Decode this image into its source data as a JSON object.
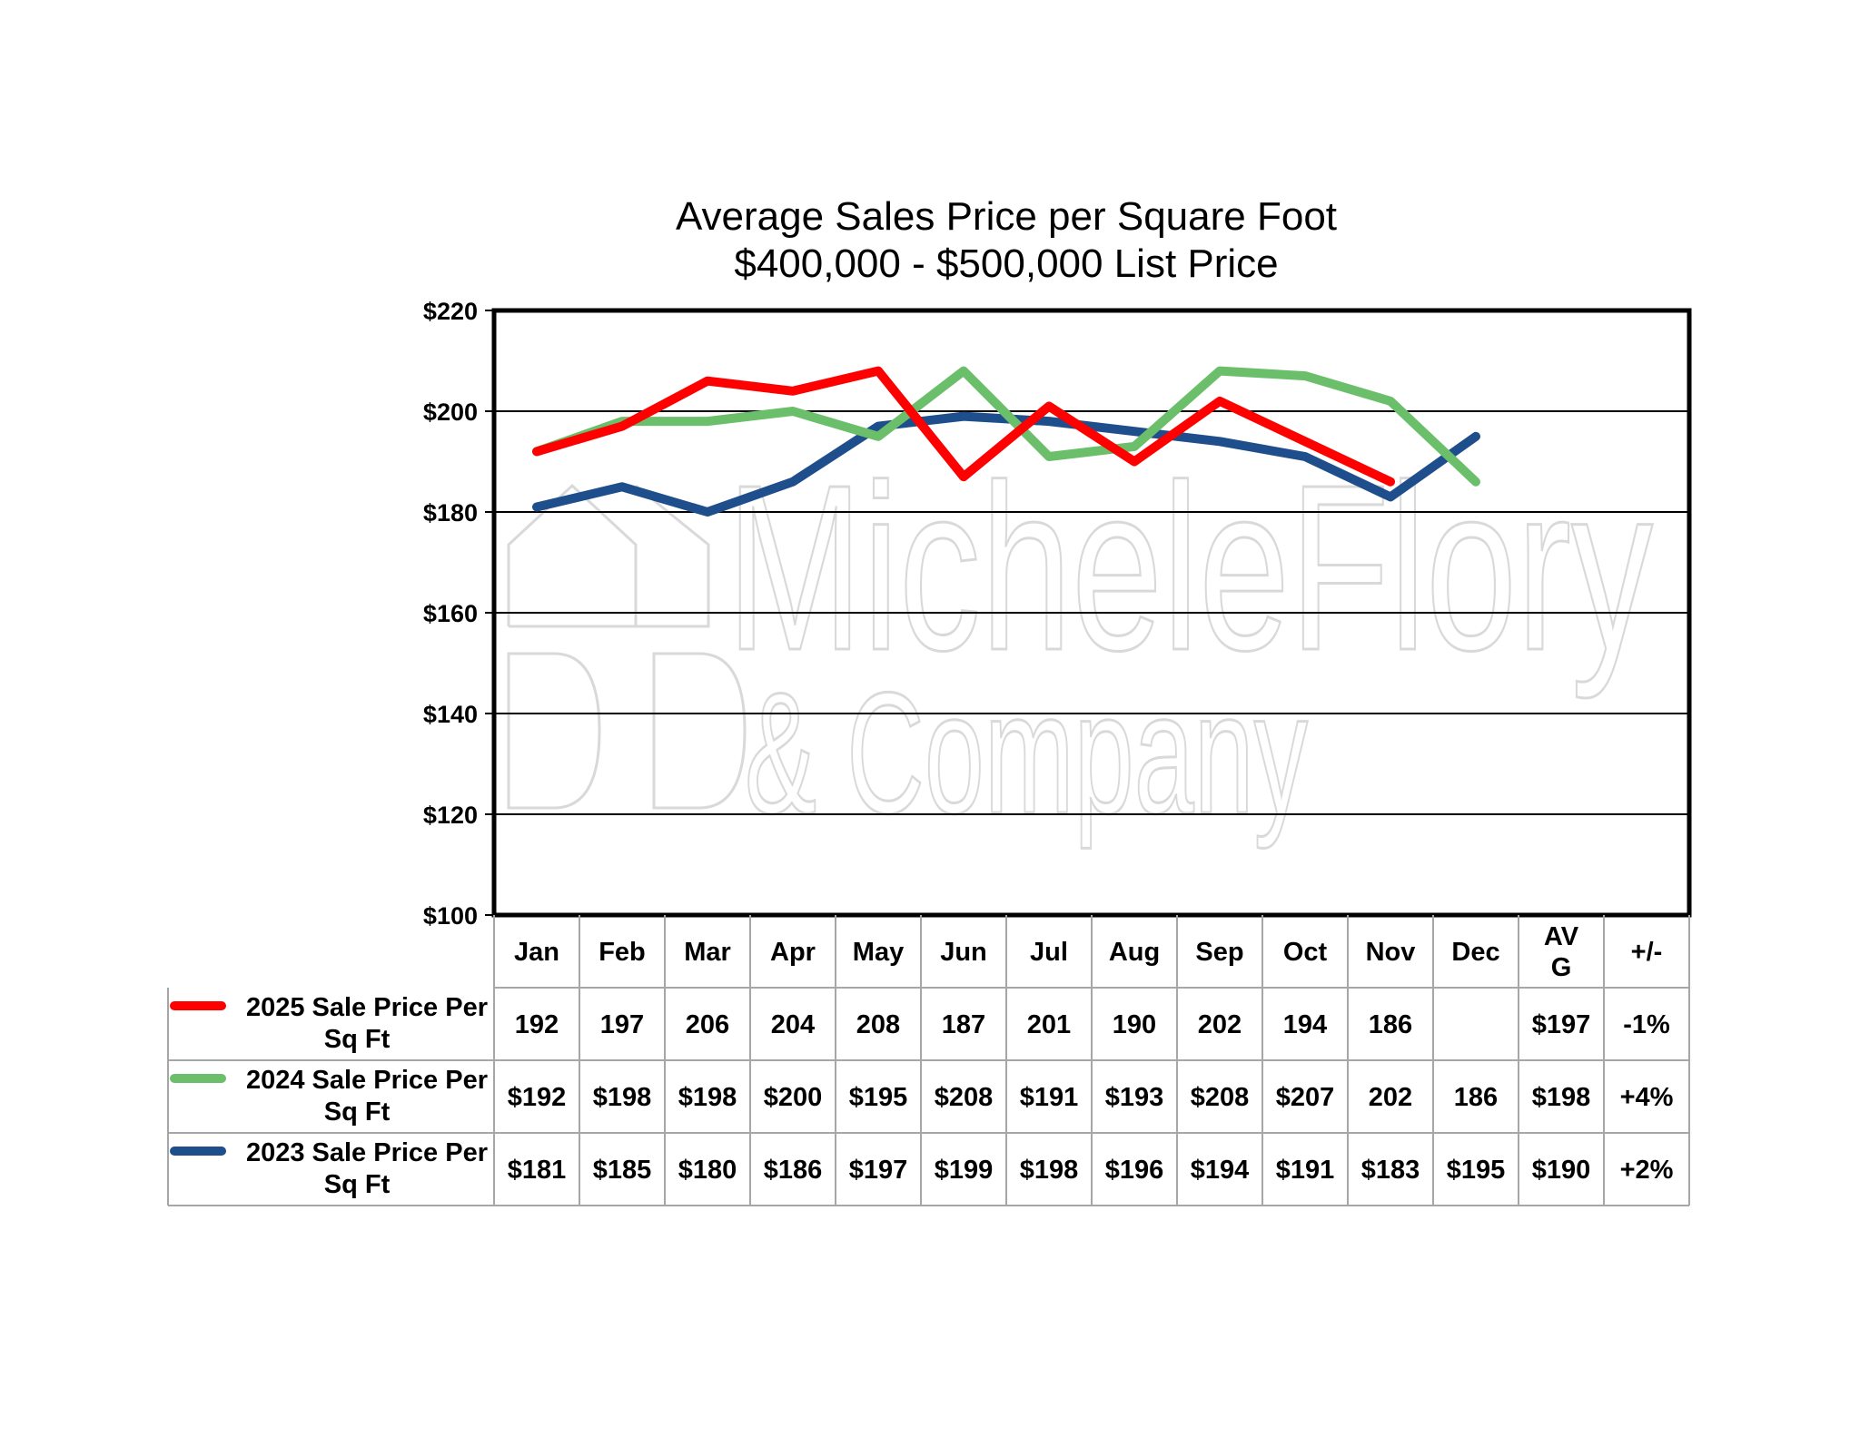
{
  "chart_data": {
    "type": "line",
    "title": "Average Sales Price per Square Foot",
    "subtitle": "$400,000 - $500,000 List Price",
    "categories": [
      "Jan",
      "Feb",
      "Mar",
      "Apr",
      "May",
      "Jun",
      "Jul",
      "Aug",
      "Sep",
      "Oct",
      "Nov",
      "Dec"
    ],
    "ylim": [
      100,
      220
    ],
    "yticks": [
      100,
      120,
      140,
      160,
      180,
      200,
      220
    ],
    "ytick_labels": [
      "$100",
      "$120",
      "$140",
      "$160",
      "$180",
      "$200",
      "$220"
    ],
    "grid": true,
    "watermark": {
      "line1": "MicheleFlory",
      "line2": "& Company"
    },
    "table": {
      "extra_headers": [
        "AV G",
        "+/-"
      ],
      "avg_header_lines": [
        "AV",
        "G"
      ]
    },
    "series": [
      {
        "name": "2025 Sale Price Per Sq Ft",
        "label_lines": [
          "2025 Sale Price Per",
          "Sq Ft"
        ],
        "color": "#ff0000",
        "values": [
          192,
          197,
          206,
          204,
          208,
          187,
          201,
          190,
          202,
          194,
          186,
          null
        ],
        "cells": [
          "192",
          "197",
          "206",
          "204",
          "208",
          "187",
          "201",
          "190",
          "202",
          "194",
          "186",
          ""
        ],
        "avg": "$197",
        "change": "-1%"
      },
      {
        "name": "2024 Sale Price Per Sq Ft",
        "label_lines": [
          "2024 Sale Price Per",
          "Sq Ft"
        ],
        "color": "#6bbf6b",
        "values": [
          192,
          198,
          198,
          200,
          195,
          208,
          191,
          193,
          208,
          207,
          202,
          186
        ],
        "cells": [
          "$192",
          "$198",
          "$198",
          "$200",
          "$195",
          "$208",
          "$191",
          "$193",
          "$208",
          "$207",
          "202",
          "186"
        ],
        "avg": "$198",
        "change": "+4%"
      },
      {
        "name": "2023 Sale Price Per Sq Ft",
        "label_lines": [
          "2023 Sale Price Per",
          "Sq Ft"
        ],
        "color": "#1f4e8c",
        "values": [
          181,
          185,
          180,
          186,
          197,
          199,
          198,
          196,
          194,
          191,
          183,
          195
        ],
        "cells": [
          "$181",
          "$185",
          "$180",
          "$186",
          "$197",
          "$199",
          "$198",
          "$196",
          "$194",
          "$191",
          "$183",
          "$195"
        ],
        "avg": "$190",
        "change": "+2%"
      }
    ]
  }
}
